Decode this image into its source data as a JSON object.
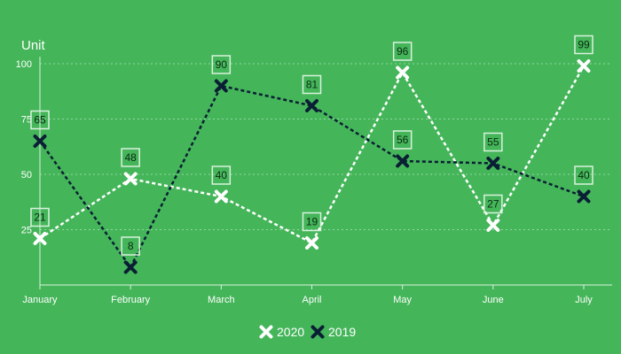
{
  "colors": {
    "background": "#45b55a",
    "grid": "#8fd89c",
    "axis": "#d9f2dd",
    "label_box_stroke": "#d9f2dd",
    "series_2020": "#ffffff",
    "series_2019": "#0a1f33"
  },
  "chart_data": {
    "type": "line",
    "title": "",
    "ylabel": "Unit",
    "xlabel": "",
    "categories": [
      "January",
      "February",
      "March",
      "April",
      "May",
      "June",
      "July"
    ],
    "ylim": [
      0,
      100
    ],
    "yticks": [
      25,
      50,
      75,
      100
    ],
    "grid": true,
    "legend_position": "bottom",
    "series": [
      {
        "name": "2020",
        "values": [
          21,
          48,
          40,
          19,
          96,
          27,
          99
        ],
        "color": "#ffffff",
        "line_style": "dashed",
        "marker": "x"
      },
      {
        "name": "2019",
        "values": [
          65,
          8,
          90,
          81,
          56,
          55,
          40
        ],
        "color": "#0a1f33",
        "line_style": "dashed",
        "marker": "x"
      }
    ]
  }
}
